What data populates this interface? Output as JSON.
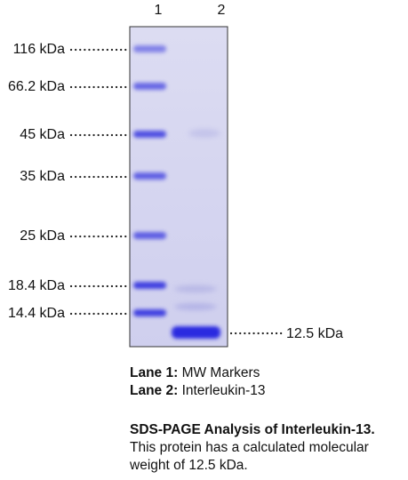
{
  "lanes": [
    "1",
    "2"
  ],
  "markers": [
    "116 kDa",
    "66.2 kDa",
    "45 kDa",
    "35 kDa",
    "25 kDa",
    "18.4 kDa",
    "14.4 kDa"
  ],
  "sample_band": "12.5 kDa",
  "legend": [
    {
      "label": "Lane 1:",
      "text": "MW Markers"
    },
    {
      "label": "Lane 2:",
      "text": "Interleukin-13"
    }
  ],
  "caption": {
    "title": "SDS-PAGE Analysis of Interleukin-13.",
    "lines": [
      "This protein has a calculated molecular",
      "weight of 12.5 kDa."
    ]
  }
}
